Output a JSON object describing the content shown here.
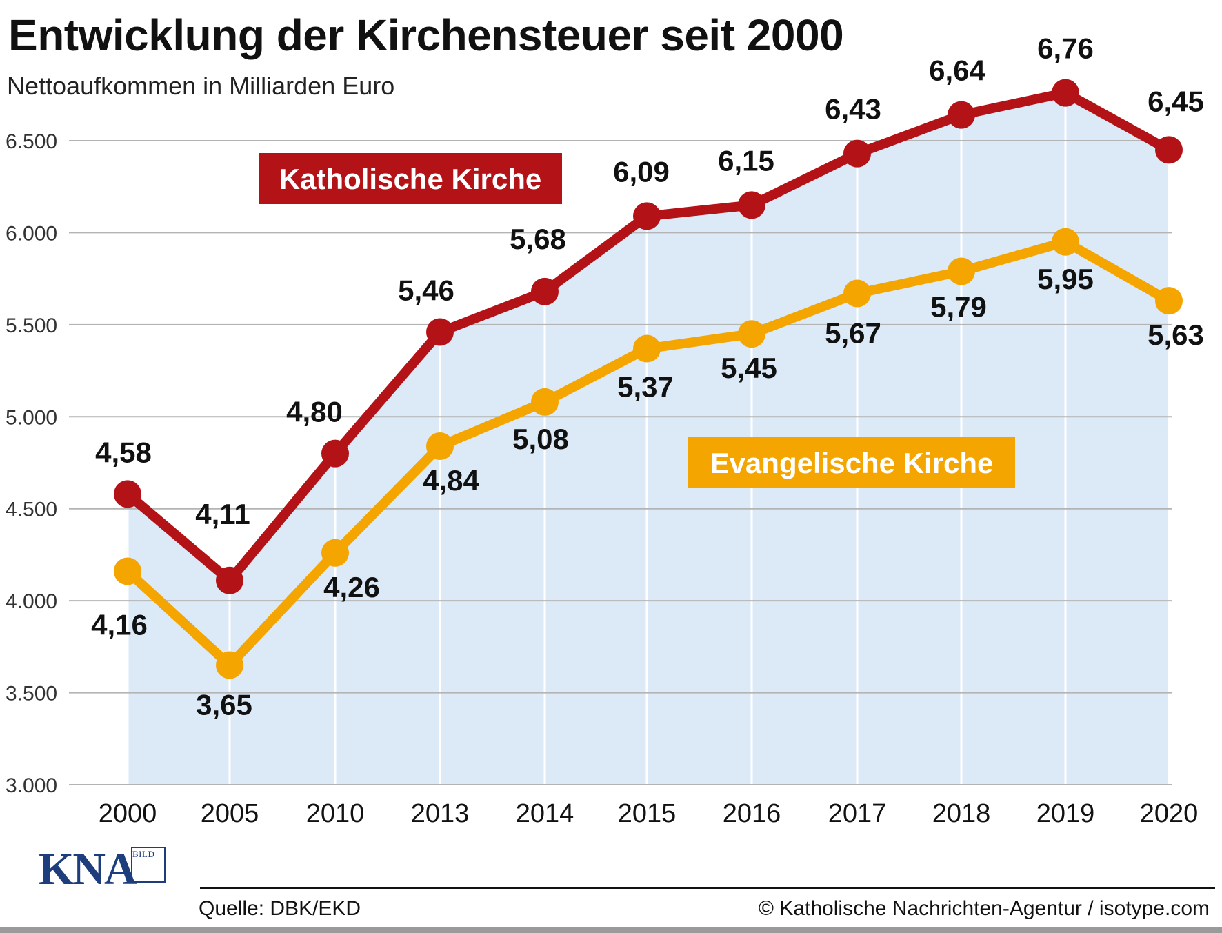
{
  "title": "Entwicklung der Kirchensteuer seit 2000",
  "subtitle": "Nettoaufkommen in Milliarden Euro",
  "footer": {
    "source": "Quelle: DBK/EKD",
    "copyright": "© Katholische Nachrichten-Agentur / isotype.com",
    "logo_text": "KNA",
    "logo_subtext": "BILD"
  },
  "colors": {
    "katholisch": "#b31217",
    "evangelisch": "#f5a500",
    "area": "#dce9f7",
    "grid": "#b4b4b4",
    "text": "#111111"
  },
  "chart_data": {
    "type": "line",
    "title": "Entwicklung der Kirchensteuer seit 2000",
    "subtitle": "Nettoaufkommen in Milliarden Euro",
    "xlabel": "",
    "ylabel": "",
    "categories": [
      "2000",
      "2005",
      "2010",
      "2013",
      "2014",
      "2015",
      "2016",
      "2017",
      "2018",
      "2019",
      "2020"
    ],
    "yticks": [
      3000,
      3500,
      4000,
      4500,
      5000,
      5500,
      6000,
      6500
    ],
    "ytick_labels": [
      "3.000",
      "3.500",
      "4.000",
      "4.500",
      "5.000",
      "5.500",
      "6.000",
      "6.500"
    ],
    "ylim": [
      3000,
      6800
    ],
    "grid": true,
    "series": [
      {
        "name": "Katholische Kirche",
        "color": "#b31217",
        "values": [
          4580,
          4110,
          4800,
          5460,
          5680,
          6090,
          6150,
          6430,
          6640,
          6760,
          6450
        ],
        "labels": [
          "4,58",
          "4,11",
          "4,80",
          "5,46",
          "5,68",
          "6,09",
          "6,15",
          "6,43",
          "6,64",
          "6,76",
          "6,45"
        ]
      },
      {
        "name": "Evangelische Kirche",
        "color": "#f5a500",
        "values": [
          4160,
          3650,
          4260,
          4840,
          5080,
          5370,
          5450,
          5670,
          5790,
          5950,
          5630
        ],
        "labels": [
          "4,16",
          "3,65",
          "4,26",
          "4,84",
          "5,08",
          "5,37",
          "5,45",
          "5,67",
          "5,79",
          "5,95",
          "5,63"
        ]
      }
    ]
  }
}
